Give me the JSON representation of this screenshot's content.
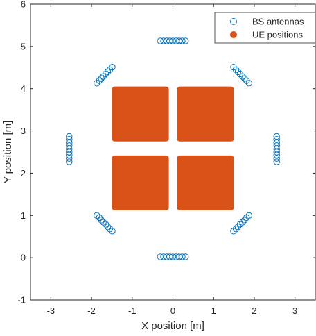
{
  "chart_data": {
    "type": "scatter",
    "title": "",
    "xlabel": "X position [m]",
    "ylabel": "Y position [m]",
    "xlim": [
      -3.5,
      3.5
    ],
    "ylim": [
      -1,
      6
    ],
    "xticks": [
      -3,
      -2,
      -1,
      0,
      1,
      2,
      3
    ],
    "yticks": [
      -1,
      0,
      1,
      2,
      3,
      4,
      5,
      6
    ],
    "x_tick_labels": [
      "-3",
      "-2",
      "-1",
      "0",
      "1",
      "2",
      "3"
    ],
    "y_tick_labels": [
      "-1",
      "0",
      "1",
      "2",
      "3",
      "4",
      "5",
      "6"
    ],
    "grid": false,
    "legend_position": "top-right",
    "series": [
      {
        "name": "BS antennas",
        "marker": "open-circle",
        "color": "#0072BD",
        "points": [
          [
            -0.31,
            0.02
          ],
          [
            -0.23,
            0.02
          ],
          [
            -0.15,
            0.02
          ],
          [
            -0.08,
            0.02
          ],
          [
            0.0,
            0.02
          ],
          [
            0.08,
            0.02
          ],
          [
            0.15,
            0.02
          ],
          [
            0.23,
            0.02
          ],
          [
            0.31,
            0.02
          ],
          [
            -0.31,
            5.13
          ],
          [
            -0.23,
            5.13
          ],
          [
            -0.15,
            5.13
          ],
          [
            -0.08,
            5.13
          ],
          [
            0.0,
            5.13
          ],
          [
            0.08,
            5.13
          ],
          [
            0.15,
            5.13
          ],
          [
            0.23,
            5.13
          ],
          [
            0.31,
            5.13
          ],
          [
            -2.55,
            2.27
          ],
          [
            -2.55,
            2.35
          ],
          [
            -2.55,
            2.43
          ],
          [
            -2.55,
            2.5
          ],
          [
            -2.55,
            2.57
          ],
          [
            -2.55,
            2.65
          ],
          [
            -2.55,
            2.72
          ],
          [
            -2.55,
            2.8
          ],
          [
            -2.55,
            2.87
          ],
          [
            2.55,
            2.27
          ],
          [
            2.55,
            2.35
          ],
          [
            2.55,
            2.43
          ],
          [
            2.55,
            2.5
          ],
          [
            2.55,
            2.57
          ],
          [
            2.55,
            2.65
          ],
          [
            2.55,
            2.72
          ],
          [
            2.55,
            2.8
          ],
          [
            2.55,
            2.87
          ],
          [
            -1.87,
            1.0
          ],
          [
            -1.81,
            0.95
          ],
          [
            -1.76,
            0.89
          ],
          [
            -1.71,
            0.84
          ],
          [
            -1.65,
            0.79
          ],
          [
            -1.6,
            0.73
          ],
          [
            -1.55,
            0.68
          ],
          [
            -1.49,
            0.63
          ],
          [
            1.49,
            0.63
          ],
          [
            1.55,
            0.68
          ],
          [
            1.6,
            0.73
          ],
          [
            1.65,
            0.79
          ],
          [
            1.71,
            0.84
          ],
          [
            1.76,
            0.89
          ],
          [
            1.81,
            0.95
          ],
          [
            1.87,
            1.0
          ],
          [
            -1.87,
            4.13
          ],
          [
            -1.81,
            4.19
          ],
          [
            -1.76,
            4.24
          ],
          [
            -1.71,
            4.29
          ],
          [
            -1.65,
            4.35
          ],
          [
            -1.6,
            4.4
          ],
          [
            -1.55,
            4.45
          ],
          [
            -1.49,
            4.51
          ],
          [
            1.49,
            4.51
          ],
          [
            1.55,
            4.45
          ],
          [
            1.6,
            4.4
          ],
          [
            1.65,
            4.35
          ],
          [
            1.71,
            4.29
          ],
          [
            1.76,
            4.24
          ],
          [
            1.81,
            4.19
          ],
          [
            1.87,
            4.13
          ]
        ]
      },
      {
        "name": "UE positions",
        "marker": "filled-circle-dense",
        "color": "#D95319",
        "regions": [
          {
            "xmin": -1.5,
            "xmax": -0.1,
            "ymin": 2.75,
            "ymax": 4.05
          },
          {
            "xmin": 0.1,
            "xmax": 1.5,
            "ymin": 2.75,
            "ymax": 4.05
          },
          {
            "xmin": -1.5,
            "xmax": -0.1,
            "ymin": 1.12,
            "ymax": 2.42
          },
          {
            "xmin": 0.1,
            "xmax": 1.5,
            "ymin": 1.12,
            "ymax": 2.42
          }
        ]
      }
    ]
  }
}
